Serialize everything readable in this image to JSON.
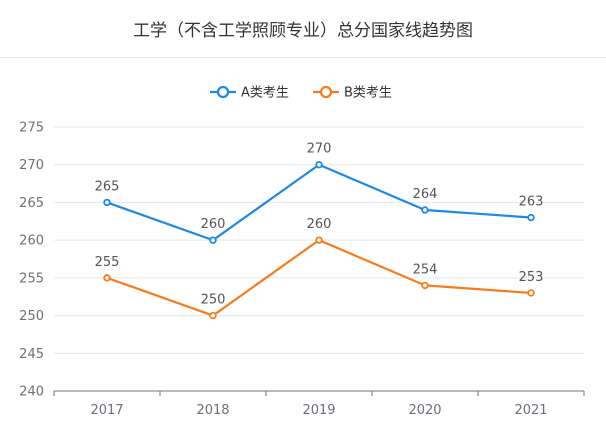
{
  "chart_data": {
    "type": "line",
    "title": "工学（不含工学照顾专业）总分国家线趋势图",
    "categories": [
      "2017",
      "2018",
      "2019",
      "2020",
      "2021"
    ],
    "series": [
      {
        "name": "A类考生",
        "color": "#1e88e5",
        "values": [
          265,
          260,
          270,
          264,
          263
        ]
      },
      {
        "name": "B类考生",
        "color": "#f57c1f",
        "values": [
          255,
          250,
          260,
          254,
          253
        ]
      }
    ],
    "ylim": [
      240,
      275
    ],
    "yticks": [
      240,
      245,
      250,
      255,
      260,
      265,
      270,
      275
    ],
    "grid": true,
    "legend": "top-center",
    "xlabel": "",
    "ylabel": ""
  }
}
